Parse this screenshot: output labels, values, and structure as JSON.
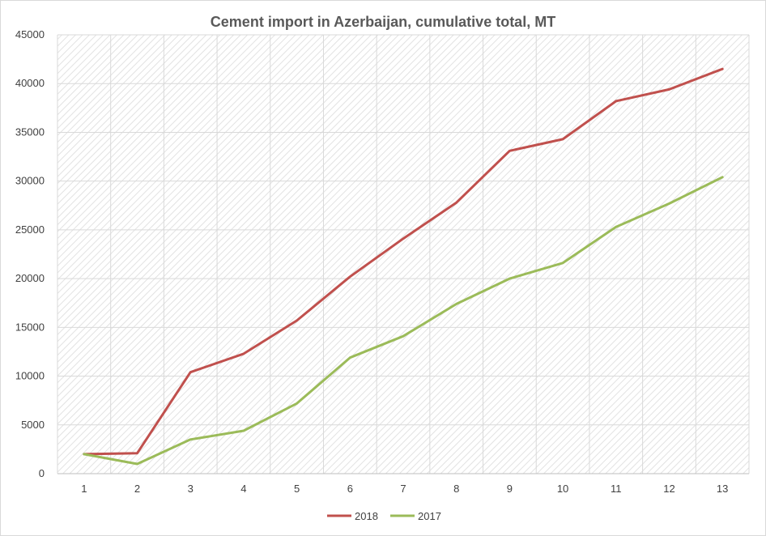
{
  "chart_data": {
    "type": "line",
    "title": "Cement import in Azerbaijan, cumulative total, MT",
    "xlabel": "",
    "ylabel": "",
    "x": [
      1,
      2,
      3,
      4,
      5,
      6,
      7,
      8,
      9,
      10,
      11,
      12,
      13
    ],
    "ylim": [
      0,
      45000
    ],
    "yticks": [
      0,
      5000,
      10000,
      15000,
      20000,
      25000,
      30000,
      35000,
      40000,
      45000
    ],
    "grid": true,
    "legend_position": "bottom",
    "series": [
      {
        "name": "2018",
        "color": "#c0504d",
        "values": [
          2000,
          2100,
          10400,
          12300,
          15700,
          20200,
          24100,
          27800,
          33100,
          34300,
          38200,
          39400,
          41500
        ]
      },
      {
        "name": "2017",
        "color": "#9bbb59",
        "values": [
          2000,
          1000,
          3500,
          4400,
          7200,
          11900,
          14100,
          17400,
          20000,
          21600,
          25300,
          27700,
          30400
        ]
      }
    ]
  }
}
